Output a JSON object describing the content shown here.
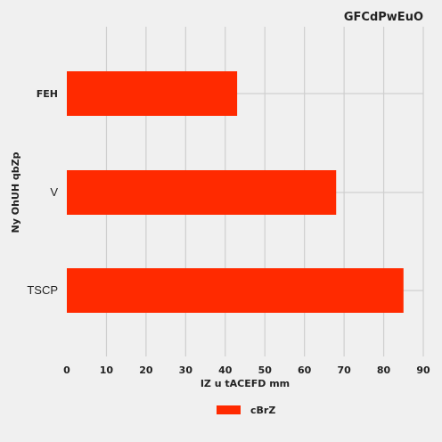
{
  "chart_data": {
    "type": "bar",
    "orientation": "horizontal",
    "title": "GFCdPwEuO",
    "xlabel": "IZ u tACEFD mm",
    "ylabel": "Ny OhUH qbZp",
    "categories": [
      "FEH",
      "V",
      "TSCP"
    ],
    "series": [
      {
        "name": "cBrZ",
        "values": [
          43,
          68,
          85
        ],
        "color": "#ff2a00"
      }
    ],
    "xlim": [
      0,
      90
    ],
    "xticks": [
      0,
      10,
      20,
      30,
      40,
      50,
      60,
      70,
      80,
      90
    ],
    "grid": true,
    "legend": "bottom-center"
  }
}
